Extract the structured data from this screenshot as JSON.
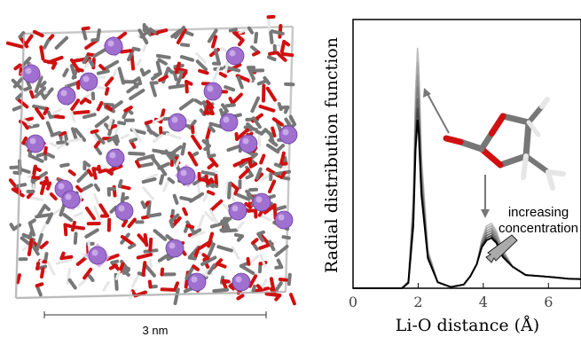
{
  "box_panel": {
    "scale_bar_label": "3 nm",
    "colors": {
      "carbon": "#777777",
      "oxygen": "#d01010",
      "hydrogen": "#e6e6e6",
      "lithium": "#a070d0",
      "lithium_polyhedra": "#e4a8ef"
    }
  },
  "chart_data": {
    "type": "line",
    "title": "",
    "xlabel": "Li-O distance (Å)",
    "ylabel": "Radial distribution function",
    "xlim": [
      0,
      7
    ],
    "x_ticks": [
      "0",
      "2",
      "4",
      "6"
    ],
    "y_ticks": [],
    "grid": false,
    "legend": "none",
    "annotations": {
      "concentration_label_line1": "increasing",
      "concentration_label_line2": "concentration"
    },
    "series_colors": [
      "#bcbcbc",
      "#a8a8a8",
      "#949494",
      "#7e7e7e",
      "#666666",
      "#444444",
      "#000000"
    ],
    "series": [
      {
        "x": [
          1.5,
          1.7,
          1.85,
          1.92,
          1.98,
          2.02,
          2.1,
          2.3,
          2.6,
          3.0,
          3.4,
          3.6,
          3.8,
          3.95,
          4.1,
          4.25,
          4.4,
          4.6,
          4.9,
          5.3,
          5.8,
          6.2,
          6.6,
          7.0
        ],
        "values": [
          0,
          0.3,
          3.8,
          8.2,
          10.0,
          9.2,
          5.5,
          1.6,
          0.25,
          0.05,
          0.15,
          0.5,
          1.0,
          2.0,
          2.6,
          2.7,
          2.4,
          1.6,
          0.9,
          0.55,
          0.5,
          0.45,
          0.4,
          0.38
        ]
      },
      {
        "x": [
          1.5,
          1.7,
          1.85,
          1.92,
          1.98,
          2.02,
          2.1,
          2.3,
          2.6,
          3.0,
          3.4,
          3.6,
          3.8,
          3.95,
          4.1,
          4.25,
          4.4,
          4.6,
          4.9,
          5.3,
          5.8,
          6.2,
          6.6,
          7.0
        ],
        "values": [
          0,
          0.28,
          3.6,
          7.8,
          9.4,
          8.7,
          5.2,
          1.5,
          0.25,
          0.05,
          0.15,
          0.5,
          1.0,
          1.95,
          2.5,
          2.6,
          2.3,
          1.55,
          0.9,
          0.55,
          0.5,
          0.45,
          0.4,
          0.38
        ]
      },
      {
        "x": [
          1.5,
          1.7,
          1.85,
          1.92,
          1.98,
          2.02,
          2.1,
          2.3,
          2.6,
          3.0,
          3.4,
          3.6,
          3.8,
          3.95,
          4.1,
          4.25,
          4.4,
          4.6,
          4.9,
          5.3,
          5.8,
          6.2,
          6.6,
          7.0
        ],
        "values": [
          0,
          0.27,
          3.4,
          7.4,
          8.9,
          8.2,
          4.9,
          1.45,
          0.25,
          0.05,
          0.15,
          0.5,
          1.0,
          1.9,
          2.4,
          2.5,
          2.2,
          1.5,
          0.9,
          0.55,
          0.5,
          0.45,
          0.4,
          0.38
        ]
      },
      {
        "x": [
          1.5,
          1.7,
          1.85,
          1.92,
          1.98,
          2.02,
          2.1,
          2.3,
          2.6,
          3.0,
          3.4,
          3.6,
          3.8,
          3.95,
          4.1,
          4.25,
          4.4,
          4.6,
          4.9,
          5.3,
          5.8,
          6.2,
          6.6,
          7.0
        ],
        "values": [
          0,
          0.26,
          3.2,
          7.0,
          8.4,
          7.8,
          4.7,
          1.4,
          0.25,
          0.05,
          0.15,
          0.5,
          1.0,
          1.85,
          2.3,
          2.4,
          2.1,
          1.45,
          0.9,
          0.55,
          0.5,
          0.45,
          0.4,
          0.38
        ]
      },
      {
        "x": [
          1.5,
          1.7,
          1.85,
          1.92,
          1.98,
          2.02,
          2.1,
          2.3,
          2.6,
          3.0,
          3.4,
          3.6,
          3.8,
          3.95,
          4.1,
          4.25,
          4.4,
          4.6,
          4.9,
          5.3,
          5.8,
          6.2,
          6.6,
          7.0
        ],
        "values": [
          0,
          0.25,
          3.0,
          6.6,
          7.9,
          7.3,
          4.4,
          1.35,
          0.25,
          0.05,
          0.15,
          0.5,
          1.0,
          1.8,
          2.2,
          2.3,
          2.0,
          1.4,
          0.9,
          0.55,
          0.5,
          0.45,
          0.4,
          0.38
        ]
      },
      {
        "x": [
          1.5,
          1.7,
          1.85,
          1.92,
          1.98,
          2.02,
          2.1,
          2.3,
          2.6,
          3.0,
          3.4,
          3.6,
          3.8,
          3.95,
          4.1,
          4.25,
          4.4,
          4.6,
          4.9,
          5.3,
          5.8,
          6.2,
          6.6,
          7.0
        ],
        "values": [
          0,
          0.24,
          2.8,
          6.2,
          7.5,
          6.9,
          4.2,
          1.3,
          0.25,
          0.05,
          0.15,
          0.5,
          1.0,
          1.75,
          2.1,
          2.2,
          1.95,
          1.35,
          0.9,
          0.55,
          0.5,
          0.45,
          0.4,
          0.38
        ]
      },
      {
        "x": [
          1.5,
          1.7,
          1.85,
          1.92,
          1.98,
          2.02,
          2.1,
          2.3,
          2.6,
          3.0,
          3.4,
          3.6,
          3.8,
          3.95,
          4.1,
          4.25,
          4.4,
          4.6,
          4.9,
          5.3,
          5.8,
          6.2,
          6.6,
          7.0
        ],
        "values": [
          0,
          0.22,
          2.6,
          5.8,
          7.0,
          6.4,
          3.9,
          1.25,
          0.25,
          0.05,
          0.15,
          0.5,
          1.0,
          1.7,
          2.0,
          2.1,
          1.9,
          1.3,
          0.9,
          0.55,
          0.5,
          0.45,
          0.4,
          0.38
        ]
      }
    ]
  }
}
